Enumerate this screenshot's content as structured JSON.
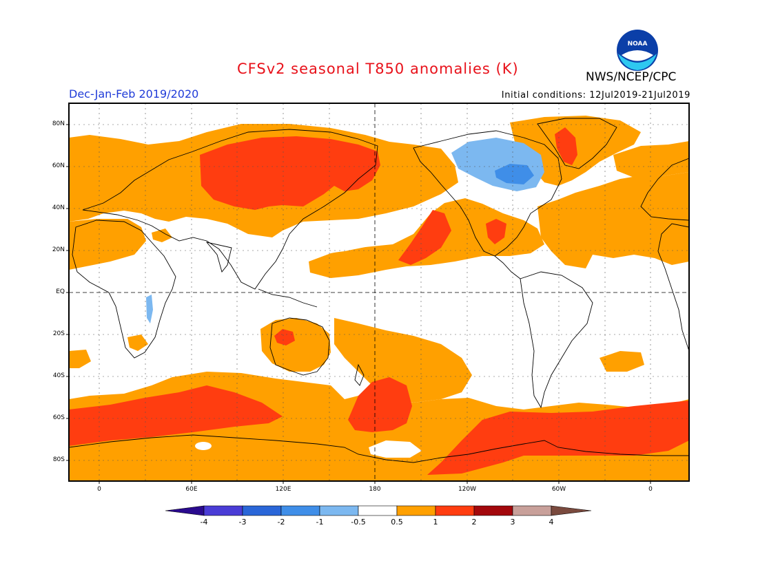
{
  "header": {
    "title": "CFSv2 seasonal T850 anomalies (K)",
    "season": "Dec-Jan-Feb 2019/2020",
    "initial_conditions": "Initial conditions: 12Jul2019-21Jul2019",
    "agency": "NWS/NCEP/CPC",
    "logo_text": "NOAA"
  },
  "axes": {
    "lat_labels": [
      "80N",
      "60N",
      "40N",
      "20N",
      "EQ",
      "20S",
      "40S",
      "60S",
      "80S"
    ],
    "lon_labels": [
      "0",
      "60E",
      "120E",
      "180",
      "120W",
      "60W",
      "0"
    ]
  },
  "colorbar": {
    "labels": [
      "-4",
      "-3",
      "-2",
      "-1",
      "-0.5",
      "0.5",
      "1",
      "2",
      "3",
      "4"
    ],
    "colors": [
      "#2a0a8e",
      "#4a3cd6",
      "#2a66d8",
      "#3f8ee8",
      "#7cb8f0",
      "#ffffff",
      "#ffa000",
      "#ff3d10",
      "#a3080c",
      "#c8a09a",
      "#7a4a3e"
    ]
  },
  "colors": {
    "positive_05_1": "#ffa000",
    "positive_1_2": "#ff3d10",
    "negative_1_05": "#7cb8f0",
    "negative_2_1": "#3f8ee8",
    "title": "#e8111a",
    "season": "#1f3bd8"
  }
}
